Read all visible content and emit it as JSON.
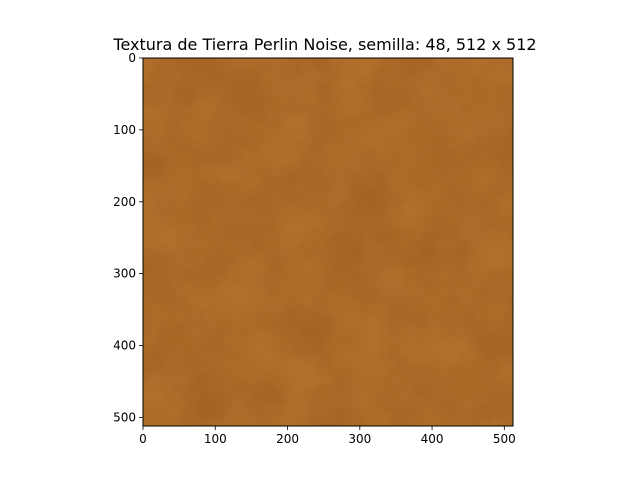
{
  "chart_data": {
    "type": "heatmap",
    "title": "Textura de Tierra Perlin Noise, semilla: 48, 512 x 512",
    "xlabel": "",
    "ylabel": "",
    "xlim": [
      0,
      512
    ],
    "ylim": [
      512,
      0
    ],
    "y_inverted": true,
    "grid": false,
    "x_ticks": [
      0,
      100,
      200,
      300,
      400,
      500
    ],
    "y_ticks": [
      0,
      100,
      200,
      300,
      400,
      500
    ],
    "x_tick_labels": [
      "0",
      "100",
      "200",
      "300",
      "400",
      "500"
    ],
    "y_tick_labels": [
      "0",
      "100",
      "200",
      "300",
      "400",
      "500"
    ],
    "image": {
      "width": 512,
      "height": 512,
      "texture": "perlin-noise-earth",
      "seed": 48
    },
    "colors": {
      "base": "#b36f2c",
      "dark": "#8f5219",
      "light": "#c98a45"
    }
  }
}
